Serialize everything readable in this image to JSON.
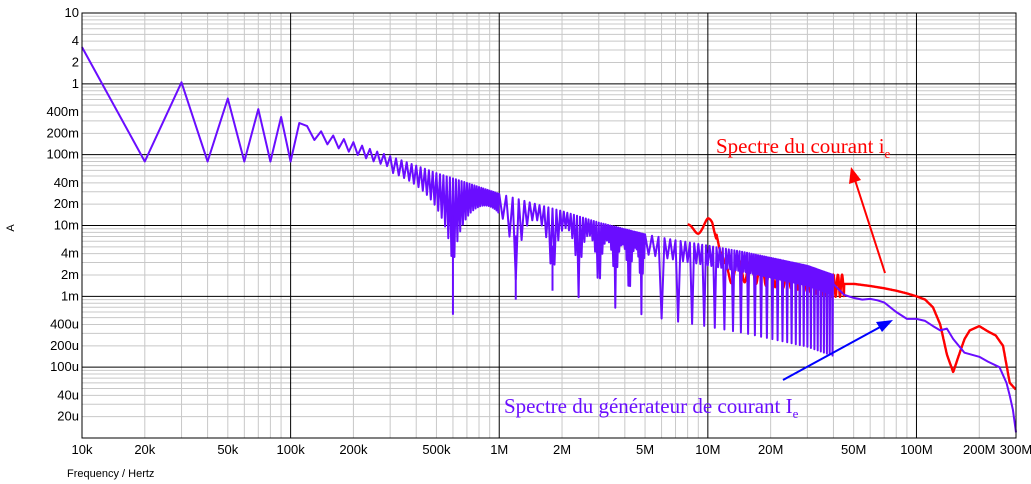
{
  "chart_data": {
    "type": "line",
    "xlabel": "Frequency / Hertz",
    "ylabel": "A",
    "xscale": "log",
    "yscale": "log",
    "xlim": [
      10000,
      300000000
    ],
    "ylim": [
      1e-05,
      10
    ],
    "grid": true,
    "x_ticks": [
      {
        "v": 10000,
        "label": "10k"
      },
      {
        "v": 20000,
        "label": "20k"
      },
      {
        "v": 50000,
        "label": "50k"
      },
      {
        "v": 100000,
        "label": "100k"
      },
      {
        "v": 200000,
        "label": "200k"
      },
      {
        "v": 500000,
        "label": "500k"
      },
      {
        "v": 1000000,
        "label": "1M"
      },
      {
        "v": 2000000,
        "label": "2M"
      },
      {
        "v": 5000000,
        "label": "5M"
      },
      {
        "v": 10000000,
        "label": "10M"
      },
      {
        "v": 20000000,
        "label": "20M"
      },
      {
        "v": 50000000,
        "label": "50M"
      },
      {
        "v": 100000000,
        "label": "100M"
      },
      {
        "v": 200000000,
        "label": "200M"
      },
      {
        "v": 300000000,
        "label": "300M"
      }
    ],
    "y_ticks": [
      {
        "v": 10,
        "label": "10"
      },
      {
        "v": 4,
        "label": "4"
      },
      {
        "v": 2,
        "label": "2"
      },
      {
        "v": 1,
        "label": "1"
      },
      {
        "v": 0.4,
        "label": "400m"
      },
      {
        "v": 0.2,
        "label": "200m"
      },
      {
        "v": 0.1,
        "label": "100m"
      },
      {
        "v": 0.04,
        "label": "40m"
      },
      {
        "v": 0.02,
        "label": "20m"
      },
      {
        "v": 0.01,
        "label": "10m"
      },
      {
        "v": 0.004,
        "label": "4m"
      },
      {
        "v": 0.002,
        "label": "2m"
      },
      {
        "v": 0.001,
        "label": "1m"
      },
      {
        "v": 0.0004,
        "label": "400u"
      },
      {
        "v": 0.0002,
        "label": "200u"
      },
      {
        "v": 0.0001,
        "label": "100u"
      },
      {
        "v": 4e-05,
        "label": "40u"
      },
      {
        "v": 2e-05,
        "label": "20u"
      }
    ],
    "series": [
      {
        "name": "Spectre du courant ie",
        "color": "#ff0000",
        "x": [
          9000000,
          9500000,
          10000000,
          10500000,
          11000000,
          12000000,
          14000000,
          17000000,
          20000000,
          25000000,
          30000000,
          35000000,
          40000000,
          50000000,
          60000000,
          70000000,
          80000000,
          90000000,
          100000000,
          110000000,
          120000000,
          130000000,
          140000000,
          150000000,
          160000000,
          170000000,
          180000000,
          200000000,
          220000000,
          240000000,
          260000000,
          280000000,
          300000000
        ],
        "y": [
          0.009,
          0.0095,
          0.011,
          0.011,
          0.0075,
          0.0022,
          0.0025,
          0.0023,
          0.0021,
          0.002,
          0.0018,
          0.0016,
          0.0015,
          0.0015,
          0.0014,
          0.0013,
          0.0012,
          0.0011,
          0.001,
          0.0009,
          0.0007,
          0.0004,
          0.00015,
          8.5e-05,
          0.00015,
          0.00025,
          0.00033,
          0.00038,
          0.00032,
          0.00028,
          0.0002,
          6e-05,
          4.8e-05
        ]
      },
      {
        "name": "Spectre du générateur de courant Ie",
        "color": "#6a0dff",
        "peaks": [
          [
            10000,
            3.3
          ],
          [
            30000,
            1.05
          ],
          [
            50000,
            0.62
          ],
          [
            70000,
            0.44
          ],
          [
            90000,
            0.34
          ],
          [
            110000,
            0.28
          ],
          [
            130000,
            0.23
          ],
          [
            150000,
            0.2
          ],
          [
            170000,
            0.175
          ],
          [
            200000,
            0.15
          ],
          [
            250000,
            0.115
          ],
          [
            300000,
            0.095
          ],
          [
            400000,
            0.07
          ],
          [
            500000,
            0.055
          ],
          [
            700000,
            0.04
          ],
          [
            1000000,
            0.028
          ],
          [
            1500000,
            0.02
          ],
          [
            2000000,
            0.016
          ],
          [
            3000000,
            0.011
          ],
          [
            5000000,
            0.0075
          ],
          [
            7000000,
            0.0062
          ],
          [
            10000000,
            0.0052
          ],
          [
            15000000,
            0.0042
          ],
          [
            20000000,
            0.0035
          ],
          [
            30000000,
            0.0027
          ],
          [
            40000000,
            0.002
          ]
        ],
        "nulls": [
          [
            20000,
            0.08
          ],
          [
            40000,
            0.08
          ],
          [
            60000,
            0.08
          ],
          [
            80000,
            0.08
          ],
          [
            100000,
            0.08
          ],
          [
            200000,
            0.078
          ],
          [
            400000,
            0.035
          ],
          [
            500000,
            0.01
          ],
          [
            600000,
            0.00055
          ],
          [
            800000,
            0.0035
          ],
          [
            1000000,
            0.0028
          ],
          [
            1200000,
            0.0009
          ],
          [
            1800000,
            0.0012
          ],
          [
            2400000,
            0.0018
          ],
          [
            3000000,
            0.0025
          ]
        ],
        "tail_x": [
          40000000,
          45000000,
          50000000,
          55000000,
          60000000,
          65000000,
          70000000,
          80000000,
          90000000,
          100000000,
          110000000,
          120000000,
          130000000,
          140000000,
          150000000,
          170000000,
          200000000,
          220000000,
          250000000,
          270000000,
          280000000,
          290000000,
          300000000
        ],
        "tail_y": [
          0.0015,
          0.00105,
          0.00095,
          0.0009,
          0.00092,
          0.00088,
          0.00082,
          0.0006,
          0.00048,
          0.00048,
          0.00045,
          0.00038,
          0.00033,
          0.00035,
          0.00025,
          0.00016,
          0.00014,
          0.00012,
          0.0001,
          6e-05,
          4e-05,
          2.5e-05,
          1.2e-05
        ]
      }
    ],
    "annotations": [
      {
        "text": "Spectre du courant i",
        "sub": "e",
        "color": "#ff0000"
      },
      {
        "text": "Spectre du générateur de courant I",
        "sub": "e",
        "color": "#6a0dff"
      }
    ]
  }
}
